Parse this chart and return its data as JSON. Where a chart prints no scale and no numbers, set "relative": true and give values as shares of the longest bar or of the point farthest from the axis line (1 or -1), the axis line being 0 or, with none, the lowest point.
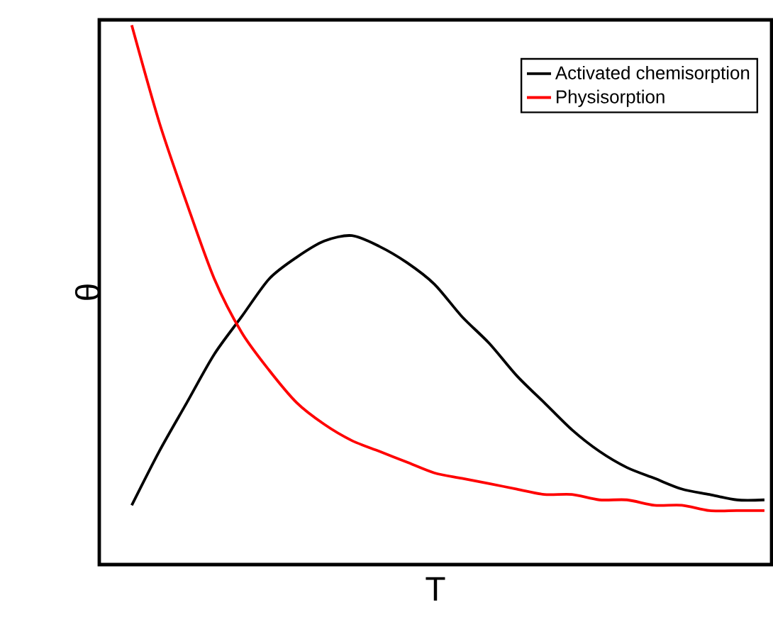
{
  "chart_data": {
    "type": "line",
    "relative": true,
    "xlabel": "T",
    "ylabel": "θ",
    "legend": "top right",
    "marker": "none",
    "line_style": "solid",
    "categories": [
      null,
      null,
      null,
      null,
      null,
      null,
      null,
      null,
      null,
      null,
      null,
      null,
      null,
      null,
      null,
      null,
      null,
      null,
      null,
      null,
      null,
      null,
      null,
      null
    ],
    "series": [
      {
        "name": "Activated chemisorption",
        "color": "#000000",
        "values": [
          0.11,
          0.21,
          0.3,
          0.39,
          0.46,
          0.53,
          0.57,
          0.6,
          0.61,
          0.59,
          0.56,
          0.52,
          0.46,
          0.41,
          0.35,
          0.3,
          0.25,
          0.21,
          0.18,
          0.16,
          0.14,
          0.13,
          0.12,
          0.12
        ]
      },
      {
        "name": "Physisorption",
        "color": "#ff0000",
        "values": [
          1.0,
          0.82,
          0.67,
          0.53,
          0.43,
          0.36,
          0.3,
          0.26,
          0.23,
          0.21,
          0.19,
          0.17,
          0.16,
          0.15,
          0.14,
          0.13,
          0.13,
          0.12,
          0.12,
          0.11,
          0.11,
          0.1,
          0.1,
          0.1
        ]
      }
    ]
  }
}
